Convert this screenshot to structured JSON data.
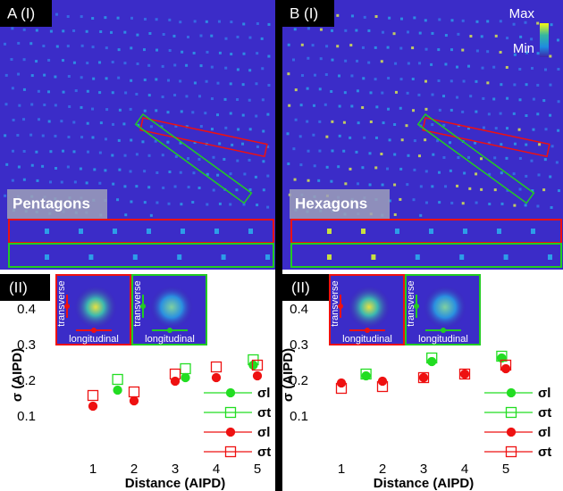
{
  "colorbar": {
    "max": "Max",
    "min": "Min"
  },
  "panels": [
    {
      "top_label": "A (I)",
      "strip_label": "Pentagons",
      "bottom_label": "(II)",
      "transverse": "transverse",
      "longitudinal": "longitudinal"
    },
    {
      "top_label": "B (I)",
      "strip_label": "Hexagons",
      "bottom_label": "(II)",
      "transverse": "transverse",
      "longitudinal": "longitudinal"
    }
  ],
  "chart_data": [
    {
      "type": "scatter",
      "xlabel": "Distance (AIPD)",
      "ylabel": "σ (AIPD)",
      "xlim": [
        0,
        5.5
      ],
      "ylim": [
        0,
        0.5
      ],
      "xticks": [
        1,
        2,
        3,
        4,
        5
      ],
      "yticks": [
        0.1,
        0.2,
        0.3,
        0.4
      ],
      "legend": "lower right",
      "series": [
        {
          "name": "σl",
          "color": "#22dd22",
          "marker": "circle",
          "filled": true,
          "x": [
            1.6,
            3.25,
            4.9
          ],
          "values": [
            0.175,
            0.21,
            0.245
          ]
        },
        {
          "name": "σt",
          "color": "#22dd22",
          "marker": "square",
          "filled": false,
          "x": [
            1.6,
            3.25,
            4.9
          ],
          "values": [
            0.205,
            0.235,
            0.26
          ]
        },
        {
          "name": "σl",
          "color": "#ee1111",
          "marker": "circle",
          "filled": true,
          "x": [
            1,
            2,
            3,
            4,
            5
          ],
          "values": [
            0.13,
            0.145,
            0.2,
            0.21,
            0.215
          ]
        },
        {
          "name": "σt",
          "color": "#ee1111",
          "marker": "square",
          "filled": false,
          "x": [
            1,
            2,
            3,
            4,
            5
          ],
          "values": [
            0.16,
            0.17,
            0.22,
            0.24,
            0.245
          ]
        }
      ]
    },
    {
      "type": "scatter",
      "xlabel": "Distance (AIPD)",
      "ylabel": "σ (AIPD)",
      "xlim": [
        0,
        5.5
      ],
      "ylim": [
        0,
        0.5
      ],
      "xticks": [
        1,
        2,
        3,
        4,
        5
      ],
      "yticks": [
        0.1,
        0.2,
        0.3,
        0.4
      ],
      "legend": "lower right",
      "series": [
        {
          "name": "σl",
          "color": "#22dd22",
          "marker": "circle",
          "filled": true,
          "x": [
            1.6,
            3.2,
            4.9
          ],
          "values": [
            0.215,
            0.255,
            0.265
          ]
        },
        {
          "name": "σt",
          "color": "#22dd22",
          "marker": "square",
          "filled": false,
          "x": [
            1.6,
            3.2,
            4.9
          ],
          "values": [
            0.22,
            0.265,
            0.27
          ]
        },
        {
          "name": "σl",
          "color": "#ee1111",
          "marker": "circle",
          "filled": true,
          "x": [
            1,
            2,
            3,
            4,
            5
          ],
          "values": [
            0.195,
            0.2,
            0.21,
            0.22,
            0.235
          ]
        },
        {
          "name": "σt",
          "color": "#ee1111",
          "marker": "square",
          "filled": false,
          "x": [
            1,
            2,
            3,
            4,
            5
          ],
          "values": [
            0.18,
            0.185,
            0.21,
            0.22,
            0.245
          ]
        }
      ]
    }
  ]
}
